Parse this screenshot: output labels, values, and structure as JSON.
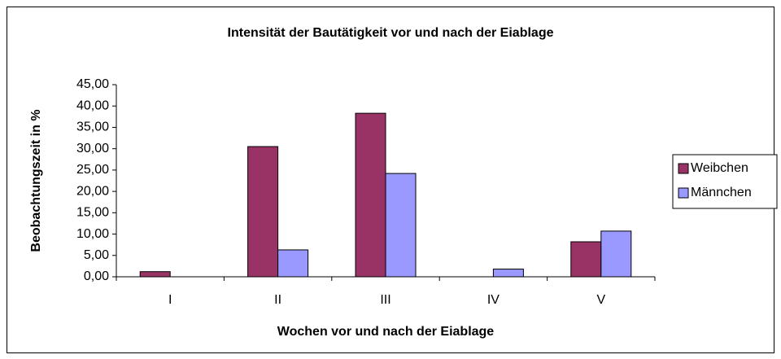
{
  "chart_data": {
    "type": "bar",
    "title": "Intensität der Bautätigkeit vor und nach der Eiablage",
    "x_label": "Wochen vor und nach der Eiablage",
    "y_label": "Beobachtungszeit in %",
    "categories": [
      "I",
      "II",
      "III",
      "IV",
      "V"
    ],
    "series": [
      {
        "name": "Weibchen",
        "color": "#993366",
        "values": [
          1.2,
          30.5,
          38.3,
          0,
          8.2
        ]
      },
      {
        "name": "Männchen",
        "color": "#9999ff",
        "values": [
          0,
          6.3,
          24.2,
          1.8,
          10.7
        ]
      }
    ],
    "ylim": [
      0,
      45
    ],
    "yticks": [
      {
        "value": 0,
        "label": "0,00"
      },
      {
        "value": 5,
        "label": "5,00"
      },
      {
        "value": 10,
        "label": "10,00"
      },
      {
        "value": 15,
        "label": "15,00"
      },
      {
        "value": 20,
        "label": "20,00"
      },
      {
        "value": 25,
        "label": "25,00"
      },
      {
        "value": 30,
        "label": "30,00"
      },
      {
        "value": 35,
        "label": "35,00"
      },
      {
        "value": 40,
        "label": "40,00"
      },
      {
        "value": 45,
        "label": "45,00"
      }
    ],
    "grid": false,
    "legend": "right"
  }
}
